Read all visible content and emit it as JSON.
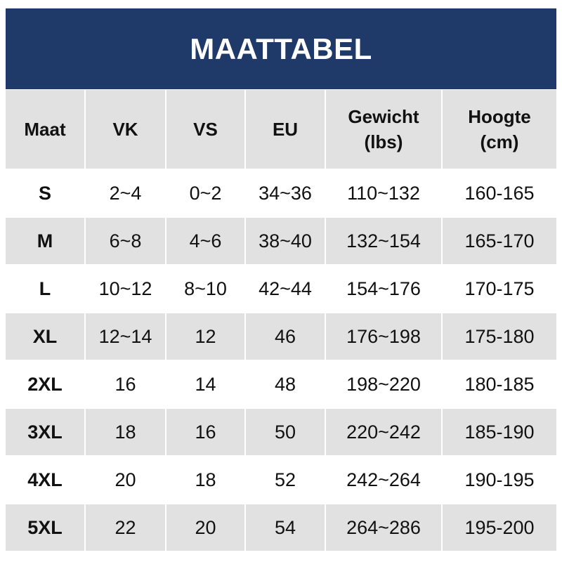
{
  "header": {
    "title": "MAATTABEL"
  },
  "table": {
    "columns": [
      "Maat",
      "VK",
      "VS",
      "EU",
      "Gewicht (lbs)",
      "Hoogte (cm)"
    ],
    "rows": [
      [
        "S",
        "2~4",
        "0~2",
        "34~36",
        "110~132",
        "160-165"
      ],
      [
        "M",
        "6~8",
        "4~6",
        "38~40",
        "132~154",
        "165-170"
      ],
      [
        "L",
        "10~12",
        "8~10",
        "42~44",
        "154~176",
        "170-175"
      ],
      [
        "XL",
        "12~14",
        "12",
        "46",
        "176~198",
        "175-180"
      ],
      [
        "2XL",
        "16",
        "14",
        "48",
        "198~220",
        "180-185"
      ],
      [
        "3XL",
        "18",
        "16",
        "50",
        "220~242",
        "185-190"
      ],
      [
        "4XL",
        "20",
        "18",
        "52",
        "242~264",
        "190-195"
      ],
      [
        "5XL",
        "22",
        "20",
        "54",
        "264~286",
        "195-200"
      ]
    ]
  }
}
